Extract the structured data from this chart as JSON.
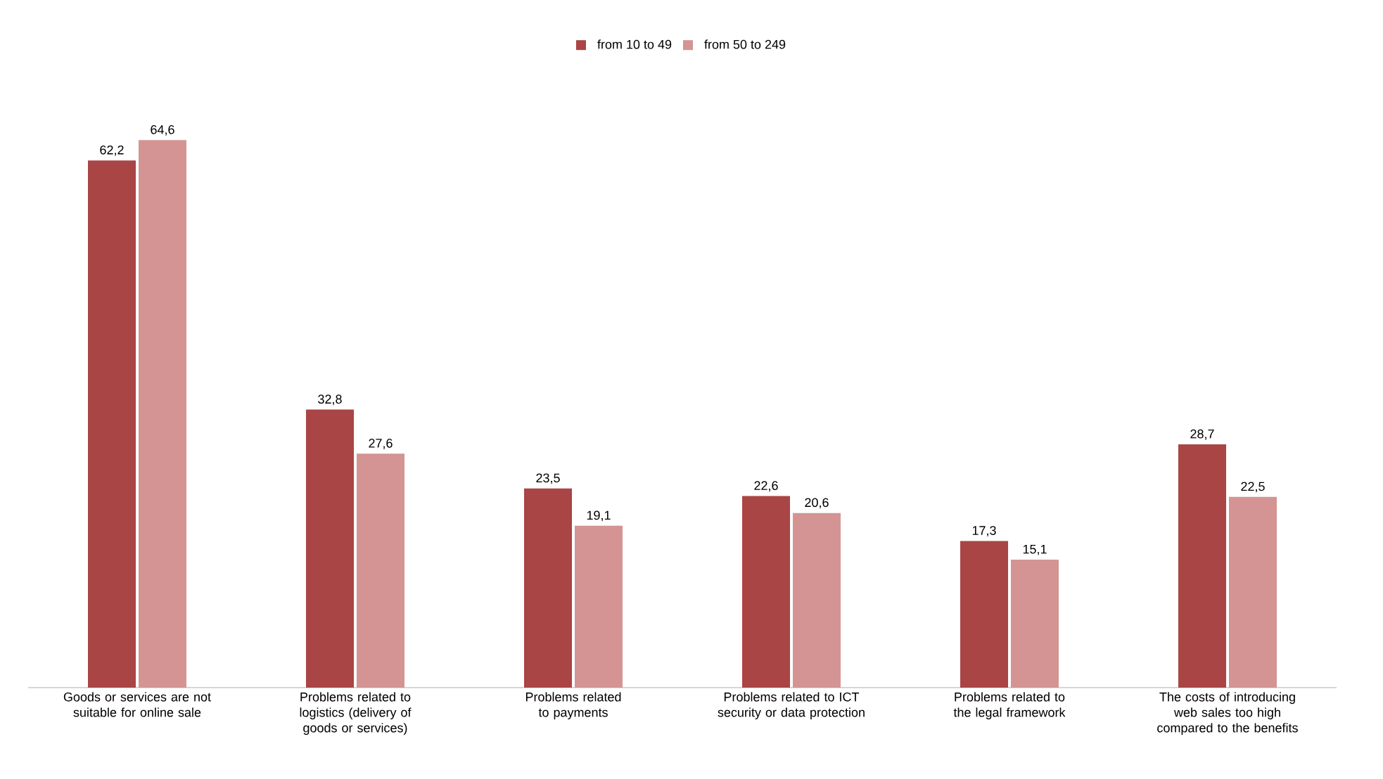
{
  "chart_data": {
    "type": "bar",
    "categories": [
      "Goods or services are not suitable for online sale",
      "Problems related to logistics (delivery of goods or services)",
      "Problems related to payments",
      "Problems related to ICT security or data protection",
      "Problems related to the legal framework",
      "The costs of introducing web sales too high compared to the benefits"
    ],
    "series": [
      {
        "name": "from 10 to 49",
        "color": "#a94544",
        "values": [
          62.2,
          32.8,
          23.5,
          22.6,
          17.3,
          28.7
        ],
        "value_labels": [
          "62,2",
          "32,8",
          "23,5",
          "22,6",
          "17,3",
          "28,7"
        ]
      },
      {
        "name": "from 50 to 249",
        "color": "#d39493",
        "values": [
          64.6,
          27.6,
          19.1,
          20.6,
          15.1,
          22.5
        ],
        "value_labels": [
          "64,6",
          "27,6",
          "19,1",
          "20,6",
          "15,1",
          "22,5"
        ]
      }
    ],
    "legend": "top"
  }
}
